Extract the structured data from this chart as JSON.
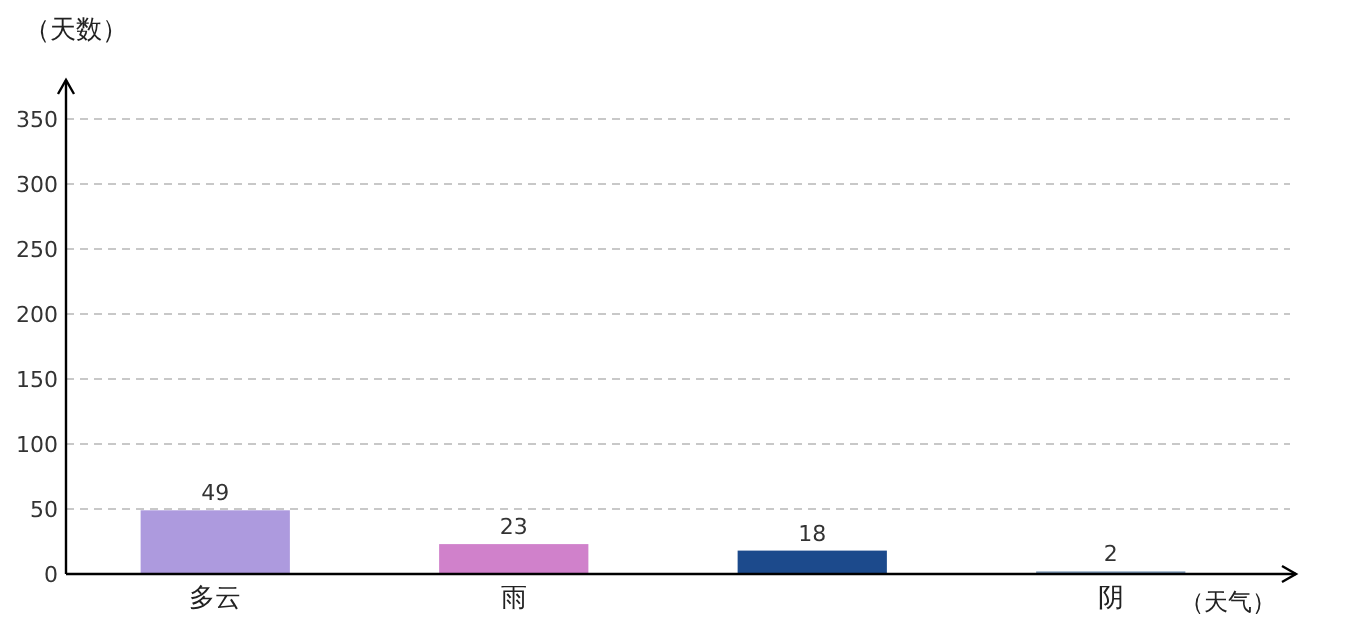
{
  "chart_data": {
    "type": "bar",
    "ylabel": "（天数）",
    "xlabel": "（天气）",
    "categories": [
      "多云",
      "雨",
      null,
      "阴"
    ],
    "values": [
      49,
      23,
      18,
      2
    ],
    "colors": [
      "#ad9ade",
      "#d081cb",
      "#1c4a8c",
      "#7a96b4"
    ],
    "ylim": [
      0,
      380
    ],
    "yticks": [
      0,
      50,
      100,
      150,
      200,
      250,
      300,
      350
    ],
    "grid": "y",
    "data_labels": true
  }
}
